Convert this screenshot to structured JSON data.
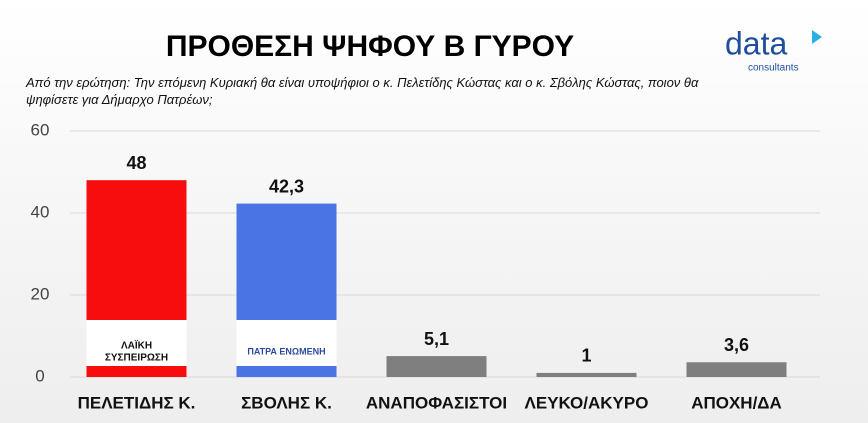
{
  "chart_data": {
    "type": "bar",
    "title": "ΠΡΟΘΕΣΗ ΨΗΦΟΥ Β ΓΥΡΟΥ",
    "subtitle": "Από την ερώτηση: Την επόμενη Κυριακή θα είναι υποψήφιοι ο κ. Πελετίδης Κώστας και ο κ. Σβόλης Κώστας, ποιον θα ψηφίσετε για Δήμαρχο Πατρέων;",
    "categories": [
      "ΠΕΛΕΤΙΔΗΣ Κ.",
      "ΣΒΟΛΗΣ Κ.",
      "ΑΝΑΠΟΦΑΣΙΣΤΟΙ",
      "ΛΕΥΚΟ/ΑΚΥΡΟ",
      "ΑΠΟΧΗ/ΔΑ"
    ],
    "values": [
      48,
      42.3,
      5.1,
      1,
      3.6
    ],
    "value_labels": [
      "48",
      "42,3",
      "5,1",
      "1",
      "3,6"
    ],
    "colors": [
      "#f70d0d",
      "#4a74e3",
      "#7f7f7f",
      "#7f7f7f",
      "#7f7f7f"
    ],
    "logos": [
      [
        "ΛΑΪΚΗ",
        "ΣΥΣΠΕΙΡΩΣΗ"
      ],
      [
        "ΠΑΤΡΑ ΕΝΩΜΕΝΗ"
      ]
    ],
    "ylim": [
      0,
      60
    ],
    "yticks": [
      0,
      20,
      40,
      60
    ],
    "grid": true,
    "brand": {
      "name": "data",
      "tagline": "consultants"
    }
  }
}
